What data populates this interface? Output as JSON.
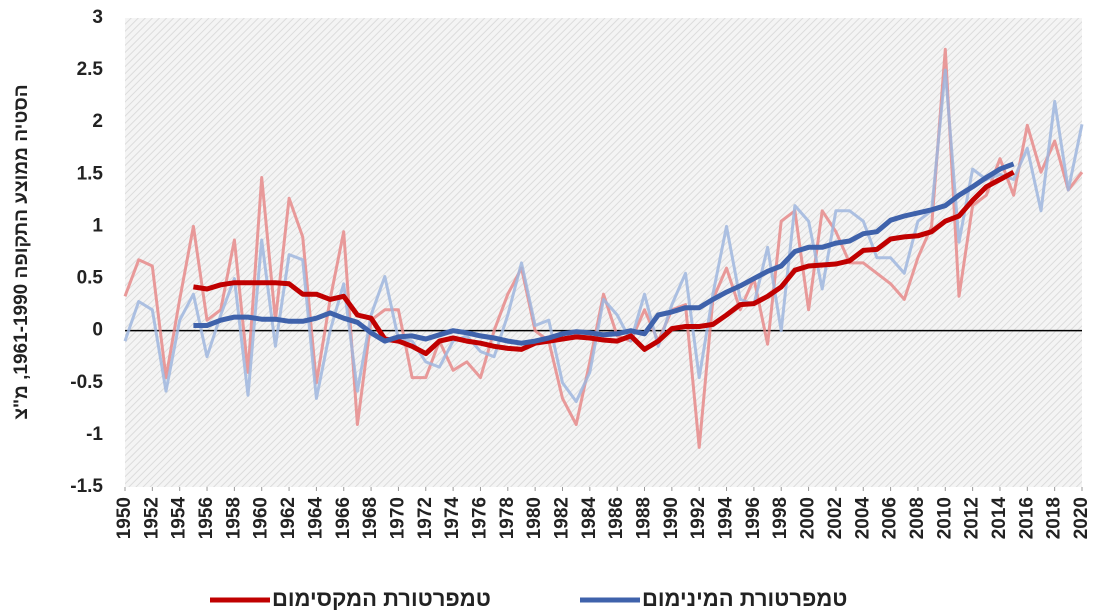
{
  "chart_data": {
    "type": "line",
    "ylabel": "הסטיה ממוצע התקופה 1961-1990, מ\"צ",
    "x": [
      1950,
      1951,
      1952,
      1953,
      1954,
      1955,
      1956,
      1957,
      1958,
      1959,
      1960,
      1961,
      1962,
      1963,
      1964,
      1965,
      1966,
      1967,
      1968,
      1969,
      1970,
      1971,
      1972,
      1973,
      1974,
      1975,
      1976,
      1977,
      1978,
      1979,
      1980,
      1981,
      1982,
      1983,
      1984,
      1985,
      1986,
      1987,
      1988,
      1989,
      1990,
      1991,
      1992,
      1993,
      1994,
      1995,
      1996,
      1997,
      1998,
      1999,
      2000,
      2001,
      2002,
      2003,
      2004,
      2005,
      2006,
      2007,
      2008,
      2009,
      2010,
      2011,
      2012,
      2013,
      2014,
      2015,
      2016,
      2017,
      2018,
      2019,
      2020
    ],
    "xlim": [
      1950,
      2020
    ],
    "xticks": [
      1950,
      1952,
      1954,
      1956,
      1958,
      1960,
      1962,
      1964,
      1966,
      1968,
      1970,
      1972,
      1974,
      1976,
      1978,
      1980,
      1982,
      1984,
      1986,
      1988,
      1990,
      1992,
      1994,
      1996,
      1998,
      2000,
      2002,
      2004,
      2006,
      2008,
      2010,
      2012,
      2014,
      2016,
      2018,
      2020
    ],
    "ylim": [
      -1.5,
      3
    ],
    "yticks": [
      -1.5,
      -1,
      -0.5,
      0,
      0.5,
      1,
      1.5,
      2,
      2.5,
      3
    ],
    "legend": "bottom",
    "series": [
      {
        "color": "#e68a8a",
        "values": [
          0.33,
          0.68,
          0.62,
          -0.45,
          0.3,
          1.0,
          0.1,
          0.2,
          0.87,
          -0.4,
          1.47,
          0.1,
          1.27,
          0.9,
          -0.5,
          0.3,
          0.95,
          -0.9,
          0.1,
          0.2,
          0.2,
          -0.45,
          -0.45,
          -0.1,
          -0.38,
          -0.3,
          -0.45,
          0.0,
          0.35,
          0.6,
          0.0,
          -0.1,
          -0.65,
          -0.9,
          -0.3,
          0.35,
          -0.05,
          -0.1,
          0.2,
          -0.1,
          0.2,
          0.25,
          -1.12,
          0.3,
          0.6,
          0.2,
          0.5,
          -0.13,
          1.05,
          1.15,
          0.2,
          1.15,
          0.95,
          0.65,
          0.65,
          0.55,
          0.45,
          0.3,
          0.7,
          1.0,
          2.7,
          0.33,
          1.2,
          1.3,
          1.65,
          1.3,
          1.97,
          1.52,
          1.82,
          1.35,
          1.52
        ]
      },
      {
        "color": "#9fb6de",
        "values": [
          -0.1,
          0.28,
          0.2,
          -0.58,
          0.1,
          0.35,
          -0.25,
          0.15,
          0.5,
          -0.62,
          0.87,
          -0.15,
          0.73,
          0.68,
          -0.65,
          0.0,
          0.45,
          -0.58,
          0.15,
          0.52,
          -0.08,
          -0.1,
          -0.3,
          -0.35,
          -0.1,
          -0.05,
          -0.2,
          -0.25,
          0.15,
          0.65,
          0.05,
          0.1,
          -0.5,
          -0.68,
          -0.4,
          0.3,
          0.15,
          -0.1,
          0.35,
          -0.15,
          0.25,
          0.55,
          -0.45,
          0.35,
          1.0,
          0.3,
          0.25,
          0.8,
          0.0,
          1.2,
          1.05,
          0.4,
          1.15,
          1.15,
          1.05,
          0.7,
          0.7,
          0.55,
          1.05,
          1.15,
          2.5,
          0.85,
          1.55,
          1.45,
          1.5,
          1.45,
          1.75,
          1.15,
          2.2,
          1.35,
          1.98
        ]
      },
      {
        "name": "טמפרטורת המקסימום",
        "color": "#c00000",
        "values": [
          null,
          null,
          null,
          null,
          null,
          0.42,
          0.4,
          0.44,
          0.46,
          0.46,
          0.46,
          0.46,
          0.45,
          0.35,
          0.35,
          0.3,
          0.33,
          0.15,
          0.12,
          -0.08,
          -0.1,
          -0.15,
          -0.22,
          -0.1,
          -0.07,
          -0.1,
          -0.12,
          -0.15,
          -0.17,
          -0.18,
          -0.12,
          -0.1,
          -0.08,
          -0.06,
          -0.07,
          -0.09,
          -0.1,
          -0.05,
          -0.18,
          -0.1,
          0.02,
          0.04,
          0.04,
          0.06,
          0.15,
          0.25,
          0.26,
          0.33,
          0.42,
          0.58,
          0.62,
          0.63,
          0.64,
          0.67,
          0.77,
          0.78,
          0.88,
          0.9,
          0.91,
          0.95,
          1.05,
          1.1,
          1.25,
          1.38,
          1.45,
          1.52,
          null,
          null,
          null,
          null,
          null
        ]
      },
      {
        "name": "טמפרטורת המינימום",
        "color": "#3f62ab",
        "values": [
          null,
          null,
          null,
          null,
          null,
          0.05,
          0.05,
          0.1,
          0.13,
          0.13,
          0.11,
          0.11,
          0.09,
          0.09,
          0.12,
          0.17,
          0.12,
          0.08,
          -0.02,
          -0.1,
          -0.06,
          -0.05,
          -0.08,
          -0.04,
          0.0,
          -0.02,
          -0.05,
          -0.07,
          -0.1,
          -0.12,
          -0.1,
          -0.07,
          -0.03,
          -0.01,
          -0.02,
          -0.04,
          -0.03,
          0.0,
          -0.03,
          0.15,
          0.18,
          0.22,
          0.22,
          0.3,
          0.37,
          0.43,
          0.5,
          0.57,
          0.62,
          0.76,
          0.8,
          0.8,
          0.84,
          0.86,
          0.93,
          0.95,
          1.06,
          1.1,
          1.13,
          1.16,
          1.2,
          1.3,
          1.38,
          1.47,
          1.55,
          1.6,
          null,
          null,
          null,
          null,
          null
        ]
      }
    ]
  }
}
